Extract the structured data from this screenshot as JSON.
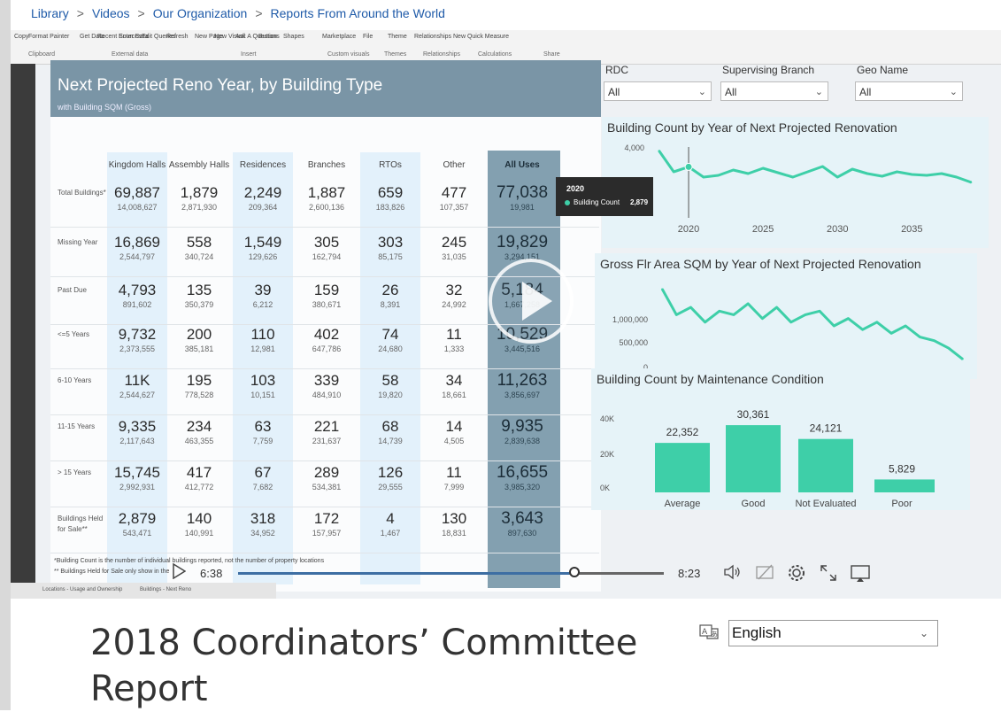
{
  "breadcrumb": [
    {
      "label": "Library"
    },
    {
      "label": "Videos"
    },
    {
      "label": "Our Organization"
    },
    {
      "label": "Reports From Around the World"
    }
  ],
  "breadcrumb_separator": ">",
  "ribbon": {
    "items": [
      "Copy",
      "Format Painter",
      "Get Data",
      "Recent Sources",
      "Enter Data",
      "Edit Queries",
      "Refresh",
      "New Page",
      "New Visual",
      "Ask A Question",
      "Buttons",
      "Shapes",
      "Marketplace",
      "File",
      "Theme",
      "Relationships",
      "New Quick Measure"
    ],
    "groups": [
      "Clipboard",
      "External data",
      "Insert",
      "Custom visuals",
      "Themes",
      "Relationships",
      "Calculations",
      "Share"
    ]
  },
  "report": {
    "title": "Next Projected Reno Year, by Building Type",
    "subtitle": "with Building SQM (Gross)",
    "columns": [
      "Kingdom Halls",
      "Assembly Halls",
      "Residences",
      "Branches",
      "RTOs",
      "Other",
      "All Uses"
    ],
    "rows": [
      {
        "label": "Total Buildings*",
        "values": [
          [
            "69,887",
            "14,008,627"
          ],
          [
            "1,879",
            "2,871,930"
          ],
          [
            "2,249",
            "209,364"
          ],
          [
            "1,887",
            "2,600,136"
          ],
          [
            "659",
            "183,826"
          ],
          [
            "477",
            "107,357"
          ],
          [
            "77,038",
            "19,981"
          ]
        ]
      },
      {
        "label": "Missing Year",
        "values": [
          [
            "16,869",
            "2,544,797"
          ],
          [
            "558",
            "340,724"
          ],
          [
            "1,549",
            "129,626"
          ],
          [
            "305",
            "162,794"
          ],
          [
            "303",
            "85,175"
          ],
          [
            "245",
            "31,035"
          ],
          [
            "19,829",
            "3,294,151"
          ]
        ]
      },
      {
        "label": "Past Due",
        "values": [
          [
            "4,793",
            "891,602"
          ],
          [
            "135",
            "350,379"
          ],
          [
            "39",
            "6,212"
          ],
          [
            "159",
            "380,671"
          ],
          [
            "26",
            "8,391"
          ],
          [
            "32",
            "24,992"
          ],
          [
            "5,184",
            "1,667,258"
          ]
        ]
      },
      {
        "label": "<=5 Years",
        "values": [
          [
            "9,732",
            "2,373,555"
          ],
          [
            "200",
            "385,181"
          ],
          [
            "110",
            "12,981"
          ],
          [
            "402",
            "647,786"
          ],
          [
            "74",
            "24,680"
          ],
          [
            "11",
            "1,333"
          ],
          [
            "10,529",
            "3,445,516"
          ]
        ]
      },
      {
        "label": "6-10 Years",
        "values": [
          [
            "11K",
            "2,544,627"
          ],
          [
            "195",
            "778,528"
          ],
          [
            "103",
            "10,151"
          ],
          [
            "339",
            "484,910"
          ],
          [
            "58",
            "19,820"
          ],
          [
            "34",
            "18,661"
          ],
          [
            "11,263",
            "3,856,697"
          ]
        ]
      },
      {
        "label": "11-15 Years",
        "values": [
          [
            "9,335",
            "2,117,643"
          ],
          [
            "234",
            "463,355"
          ],
          [
            "63",
            "7,759"
          ],
          [
            "221",
            "231,637"
          ],
          [
            "68",
            "14,739"
          ],
          [
            "14",
            "4,505"
          ],
          [
            "9,935",
            "2,839,638"
          ]
        ]
      },
      {
        "label": "> 15 Years",
        "values": [
          [
            "15,745",
            "2,992,931"
          ],
          [
            "417",
            "412,772"
          ],
          [
            "67",
            "7,682"
          ],
          [
            "289",
            "534,381"
          ],
          [
            "126",
            "29,555"
          ],
          [
            "11",
            "7,999"
          ],
          [
            "16,655",
            "3,985,320"
          ]
        ]
      },
      {
        "label": "Buildings Held for Sale**",
        "values": [
          [
            "2,879",
            "543,471"
          ],
          [
            "140",
            "140,991"
          ],
          [
            "318",
            "34,952"
          ],
          [
            "172",
            "157,957"
          ],
          [
            "4",
            "1,467"
          ],
          [
            "130",
            "18,831"
          ],
          [
            "3,643",
            "897,630"
          ]
        ]
      }
    ],
    "footnotes": [
      "*Building Count is the number of individual buildings reported, not the number of property locations",
      "** Buildings Held for Sale only show in the"
    ]
  },
  "filters": [
    {
      "label": "RDC",
      "value": "All"
    },
    {
      "label": "Supervising Branch",
      "value": "All"
    },
    {
      "label": "Geo Name",
      "value": "All"
    }
  ],
  "chart_data": [
    {
      "type": "line",
      "title": "Building Count by Year of Next Projected Renovation",
      "x": [
        2018,
        2019,
        2020,
        2021,
        2022,
        2023,
        2024,
        2025,
        2026,
        2027,
        2028,
        2029,
        2030,
        2031,
        2032,
        2033,
        2034,
        2035,
        2036,
        2037,
        2038,
        2039
      ],
      "series": [
        {
          "values": [
            3800,
            2600,
            2879,
            2300,
            2400,
            2700,
            2500,
            2800,
            2550,
            2300,
            2600,
            2900,
            2300,
            2750,
            2500,
            2350,
            2600,
            2450,
            2400,
            2500,
            2300,
            2000
          ]
        }
      ],
      "yticks": [
        "4,000"
      ],
      "xticks": [
        "2020",
        "2025",
        "2030",
        "2035"
      ],
      "ylim": [
        0,
        4000
      ],
      "color": "#3ecfa8",
      "tooltip": {
        "year": "2020",
        "label": "Building Count",
        "value": "2,879"
      }
    },
    {
      "type": "line",
      "title": "Gross Flr Area SQM by Year of Next Projected Renovation",
      "x": [
        2018,
        2019,
        2020,
        2021,
        2022,
        2023,
        2024,
        2025,
        2026,
        2027,
        2028,
        2029,
        2030,
        2031,
        2032,
        2033,
        2034,
        2035,
        2036,
        2037,
        2038,
        2039
      ],
      "series": [
        {
          "values": [
            1050000,
            700000,
            800000,
            600000,
            750000,
            700000,
            850000,
            650000,
            800000,
            600000,
            700000,
            750000,
            550000,
            650000,
            500000,
            600000,
            450000,
            550000,
            400000,
            350000,
            250000,
            100000
          ]
        }
      ],
      "yticks": [
        "1,000,000",
        "500,000",
        "0"
      ],
      "xticks": [
        "2020",
        "2025",
        "2030",
        "2035"
      ],
      "ylim": [
        0,
        1100000
      ],
      "color": "#3ecfa8"
    },
    {
      "type": "bar",
      "title": "Building Count by Maintenance Condition",
      "categories": [
        "Average",
        "Good",
        "Not Evaluated",
        "Poor"
      ],
      "values": [
        22352,
        30361,
        24121,
        5829
      ],
      "labels": [
        "22,352",
        "30,361",
        "24,121",
        "5,829"
      ],
      "yticks": [
        "40K",
        "20K",
        "0K"
      ],
      "ylim": [
        0,
        40000
      ],
      "color": "#3ecfa8"
    }
  ],
  "player": {
    "current_time": "6:38",
    "duration": "8:23",
    "progress": 0.79
  },
  "page_tabs": [
    "Locations - Usage and Ownership",
    "Buildings - Next Reno"
  ],
  "video_title": "2018 Coordinators’ Committee Report",
  "language": {
    "selected": "English"
  }
}
